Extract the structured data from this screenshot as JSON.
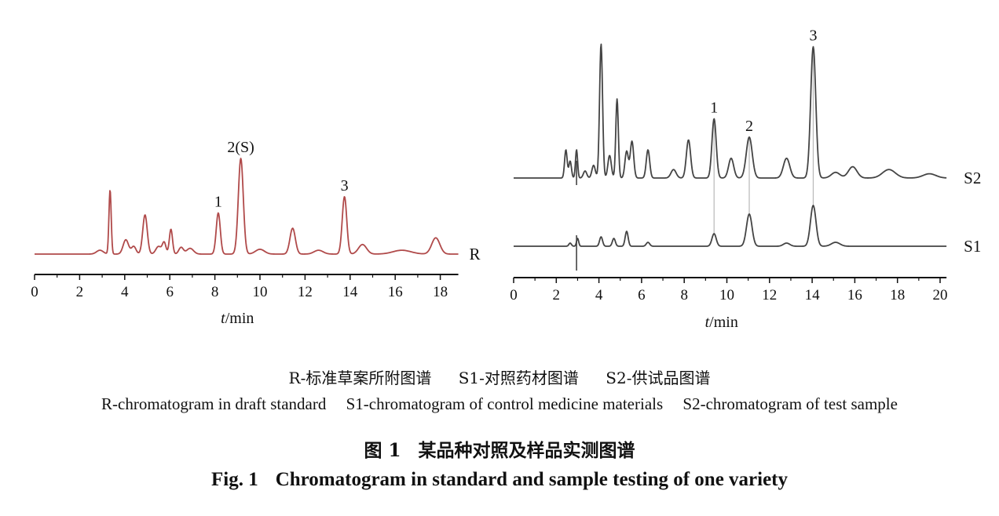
{
  "chart_data": [
    {
      "type": "line",
      "title": "",
      "xlabel_prefix": "t",
      "xlabel_unit": "/min",
      "xlim": [
        0,
        18.8
      ],
      "x_ticks": [
        "0",
        "2",
        "4",
        "6",
        "8",
        "10",
        "12",
        "14",
        "16",
        "18"
      ],
      "color": "#b04a4a",
      "series": [
        {
          "name": "R",
          "baseline": 0,
          "peaks": [
            {
              "t": 2.9,
              "h": 0.04,
              "w": 0.15
            },
            {
              "t": 3.35,
              "h": 0.67,
              "w": 0.05
            },
            {
              "t": 4.05,
              "h": 0.15,
              "w": 0.12
            },
            {
              "t": 4.4,
              "h": 0.08,
              "w": 0.1
            },
            {
              "t": 4.9,
              "h": 0.41,
              "w": 0.1
            },
            {
              "t": 5.5,
              "h": 0.08,
              "w": 0.12
            },
            {
              "t": 5.75,
              "h": 0.12,
              "w": 0.08
            },
            {
              "t": 6.05,
              "h": 0.26,
              "w": 0.07
            },
            {
              "t": 6.5,
              "h": 0.07,
              "w": 0.1
            },
            {
              "t": 6.9,
              "h": 0.06,
              "w": 0.15
            },
            {
              "t": 8.15,
              "h": 0.43,
              "w": 0.09
            },
            {
              "t": 9.15,
              "h": 1.0,
              "w": 0.11
            },
            {
              "t": 10.0,
              "h": 0.05,
              "w": 0.2
            },
            {
              "t": 11.45,
              "h": 0.27,
              "w": 0.12
            },
            {
              "t": 12.6,
              "h": 0.04,
              "w": 0.2
            },
            {
              "t": 13.75,
              "h": 0.6,
              "w": 0.1
            },
            {
              "t": 14.55,
              "h": 0.1,
              "w": 0.18
            },
            {
              "t": 16.3,
              "h": 0.04,
              "w": 0.4
            },
            {
              "t": 17.8,
              "h": 0.17,
              "w": 0.18
            }
          ]
        }
      ],
      "peak_labels": [
        {
          "label": "1",
          "t": 8.15
        },
        {
          "label": "2(S)",
          "t": 9.15
        },
        {
          "label": "3",
          "t": 13.75
        }
      ]
    },
    {
      "type": "line",
      "title": "",
      "xlabel_prefix": "t",
      "xlabel_unit": "/min",
      "xlim": [
        0,
        20.3
      ],
      "x_ticks": [
        "0",
        "2",
        "4",
        "6",
        "8",
        "10",
        "12",
        "14",
        "16",
        "18",
        "20"
      ],
      "color": "#444444",
      "series": [
        {
          "name": "S2",
          "baseline": 1.0,
          "peaks": [
            {
              "t": 2.45,
              "h": 0.2,
              "w": 0.06
            },
            {
              "t": 2.65,
              "h": 0.12,
              "w": 0.06
            },
            {
              "t": 2.95,
              "h": 0.2,
              "w": 0.05
            },
            {
              "t": 3.35,
              "h": 0.05,
              "w": 0.08
            },
            {
              "t": 3.75,
              "h": 0.09,
              "w": 0.08
            },
            {
              "t": 4.1,
              "h": 0.95,
              "w": 0.07
            },
            {
              "t": 4.5,
              "h": 0.16,
              "w": 0.08
            },
            {
              "t": 4.85,
              "h": 0.56,
              "w": 0.06
            },
            {
              "t": 5.3,
              "h": 0.19,
              "w": 0.08
            },
            {
              "t": 5.55,
              "h": 0.26,
              "w": 0.08
            },
            {
              "t": 6.3,
              "h": 0.2,
              "w": 0.08
            },
            {
              "t": 7.5,
              "h": 0.06,
              "w": 0.12
            },
            {
              "t": 8.2,
              "h": 0.27,
              "w": 0.1
            },
            {
              "t": 9.4,
              "h": 0.42,
              "w": 0.1
            },
            {
              "t": 10.2,
              "h": 0.14,
              "w": 0.12
            },
            {
              "t": 11.05,
              "h": 0.29,
              "w": 0.14
            },
            {
              "t": 12.8,
              "h": 0.14,
              "w": 0.15
            },
            {
              "t": 14.05,
              "h": 0.93,
              "w": 0.12
            },
            {
              "t": 15.1,
              "h": 0.04,
              "w": 0.2
            },
            {
              "t": 15.9,
              "h": 0.08,
              "w": 0.2
            },
            {
              "t": 17.6,
              "h": 0.06,
              "w": 0.3
            },
            {
              "t": 19.5,
              "h": 0.03,
              "w": 0.3
            }
          ]
        },
        {
          "name": "S1",
          "baseline": 0,
          "peaks": [
            {
              "t": 2.65,
              "h": 0.04,
              "w": 0.06
            },
            {
              "t": 3.0,
              "h": 0.1,
              "w": 0.05
            },
            {
              "t": 4.1,
              "h": 0.12,
              "w": 0.07
            },
            {
              "t": 4.7,
              "h": 0.1,
              "w": 0.07
            },
            {
              "t": 5.3,
              "h": 0.19,
              "w": 0.07
            },
            {
              "t": 6.3,
              "h": 0.05,
              "w": 0.08
            },
            {
              "t": 9.4,
              "h": 0.16,
              "w": 0.1
            },
            {
              "t": 11.05,
              "h": 0.41,
              "w": 0.13
            },
            {
              "t": 12.8,
              "h": 0.04,
              "w": 0.15
            },
            {
              "t": 14.05,
              "h": 0.52,
              "w": 0.13
            },
            {
              "t": 15.1,
              "h": 0.05,
              "w": 0.2
            }
          ]
        }
      ],
      "peak_labels": [
        {
          "label": "1",
          "t": 9.4
        },
        {
          "label": "2",
          "t": 11.05
        },
        {
          "label": "3",
          "t": 14.05
        }
      ],
      "correspondence_lines_at": [
        9.4,
        11.05,
        14.05
      ]
    }
  ],
  "caption": {
    "legend_zh": [
      "R-标准草案所附图谱",
      "S1-对照药材图谱",
      "S2-供试品图谱"
    ],
    "legend_en": [
      "R-chromatogram in draft standard",
      "S1-chromatogram of control medicine materials",
      "S2-chromatogram of test sample"
    ],
    "title_zh_num": "图 1",
    "title_zh": "某品种对照及样品实测图谱",
    "title_en_num": "Fig. 1",
    "title_en": "Chromatogram in standard and sample testing of one variety"
  }
}
